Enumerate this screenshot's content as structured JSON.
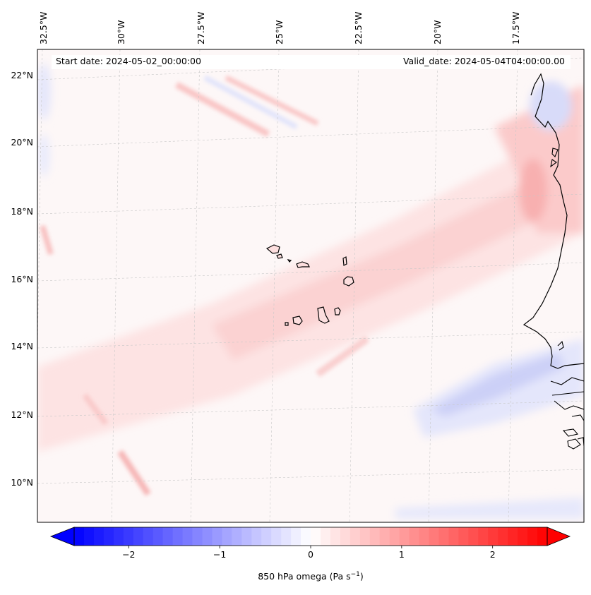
{
  "header": {
    "start_date": "Start date: 2024-05-02_00:00:00",
    "valid_date": "Valid_date: 2024-05-04T04:00:00.00"
  },
  "map": {
    "lon_labels": [
      "32.5°W",
      "30°W",
      "27.5°W",
      "25°W",
      "22.5°W",
      "20°W",
      "17.5°W"
    ],
    "lat_labels": [
      "22°N",
      "20°N",
      "18°N",
      "16°N",
      "14°N",
      "12°N",
      "10°N"
    ],
    "field": "850 hPa omega",
    "variable_units": "Pa s-1"
  },
  "colorbar": {
    "label_main": "850 hPa omega (Pa s",
    "label_sup": "−1",
    "label_end": ")",
    "tick_labels": [
      "−2",
      "−1",
      "0",
      "1",
      "2"
    ],
    "range": [
      -2.6,
      2.6
    ],
    "cmap": "bwr",
    "colors": {
      "negative": "#0000ff",
      "zero": "#ffffff",
      "positive": "#ff0000"
    }
  },
  "chart_data": {
    "type": "heatmap",
    "title": "",
    "start_date": "2024-05-02_00:00:00",
    "valid_date": "2024-05-04T04:00:00.00",
    "x_ticks": [
      "32.5°W",
      "30°W",
      "27.5°W",
      "25°W",
      "22.5°W",
      "20°W",
      "17.5°W"
    ],
    "y_ticks": [
      "22°N",
      "20°N",
      "18°N",
      "16°N",
      "14°N",
      "12°N",
      "10°N"
    ],
    "colorbar_ticks": [
      -2,
      -1,
      0,
      1,
      2
    ],
    "colorbar_label": "850 hPa omega (Pa s^-1)",
    "vmin": -2.6,
    "vmax": 2.6,
    "extend": "both"
  }
}
